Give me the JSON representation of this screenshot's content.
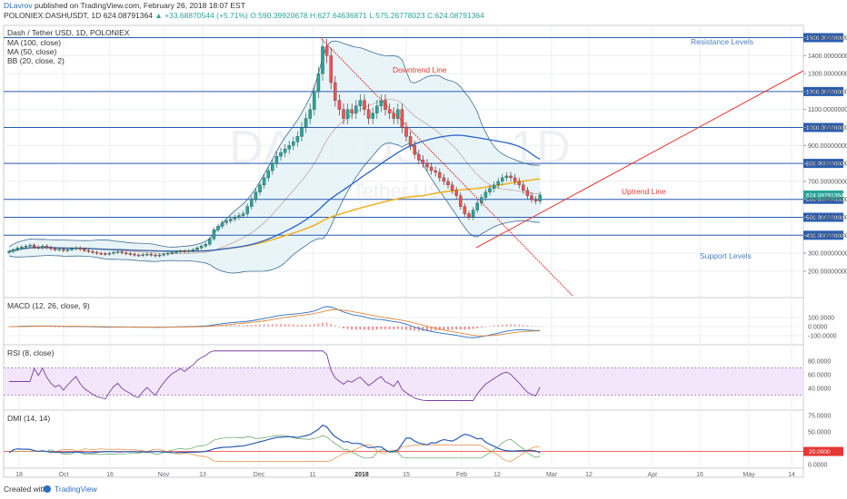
{
  "header": {
    "author": "DLavrov",
    "published": "published on TradingView.com, February 26, 2018 18:07 EST",
    "ticker": "POLONIEX:DASHUSDT, 1D",
    "last": "624.08791364",
    "change": "+33.68870544 (+5.71%)",
    "open": "O:590.39920678",
    "high": "H:627.64636871",
    "low": "L:575.26778023",
    "close": "C:624.08791364"
  },
  "legend": {
    "title": "Dash / Tether USD, 1D, POLONIEX",
    "ma100": "MA (100, close)",
    "ma50": "MA (50, close)",
    "bb": "BB (20, close, 2)"
  },
  "watermark": {
    "symbol": "DASHUSDT, 1D",
    "name": "Dash / Tether USD"
  },
  "annotations": {
    "resistance": "Resistance Levels",
    "support": "Support Levels",
    "downtrend": "Downtrend Line",
    "uptrend": "Uptrend Line"
  },
  "panes": {
    "macd": "MACD (12, 26, close, 9)",
    "rsi": "RSI (8, close)",
    "dmi": "DMI (14, 14)"
  },
  "footer": {
    "created": "Created with",
    "brand": "TradingView"
  },
  "colors": {
    "candle_up": "#26a69a",
    "candle_down": "#ef5350",
    "ma100": "#f0b429",
    "ma50": "#2962c9",
    "bb": "#3e6c96",
    "bb_fill": "#e6f3f7",
    "level": "#2a5db0",
    "trend": "#e53935",
    "rsi": "#7b3fa0",
    "macd": "#2a6ebf",
    "signal": "#e08a3c"
  },
  "chart_data": [
    {
      "type": "candlestick",
      "title": "Dash / Tether USD, 1D, POLONIEX",
      "x_ticks": [
        "18",
        "Oct",
        "16",
        "Nov",
        "13",
        "Dec",
        "11",
        "2018",
        "15",
        "Feb",
        "12",
        "Mar",
        "12",
        "Apr",
        "16",
        "May",
        "14"
      ],
      "ylim": [
        100,
        1650
      ],
      "y_ticks": [
        {
          "v": 1600,
          "label": "1600.00000000"
        },
        {
          "v": 1500,
          "label": "1500.00000000"
        },
        {
          "v": 1400,
          "label": "1400.00000000"
        },
        {
          "v": 1300,
          "label": "1300.00000000"
        },
        {
          "v": 1200,
          "label": "1200.00000000"
        },
        {
          "v": 1100,
          "label": "1100.00000000"
        },
        {
          "v": 1000,
          "label": "1000.00000000"
        },
        {
          "v": 900,
          "label": "900.00000000"
        },
        {
          "v": 800,
          "label": "800.00000000"
        },
        {
          "v": 700,
          "label": "700.00000000"
        },
        {
          "v": 600,
          "label": "600.00000000"
        },
        {
          "v": 500,
          "label": "500.00000000"
        },
        {
          "v": 400,
          "label": "400.00000000"
        },
        {
          "v": 300,
          "label": "300.00000000"
        },
        {
          "v": 200,
          "label": "200.00000000"
        }
      ],
      "horizontal_levels": [
        {
          "value": 1500,
          "label": "1500.00000000"
        },
        {
          "value": 1200,
          "label": "1200.00000000"
        },
        {
          "value": 1000,
          "label": "1000.00000000"
        },
        {
          "value": 800,
          "label": "800.00000000"
        },
        {
          "value": 600,
          "label": "600.00000000"
        },
        {
          "value": 500,
          "label": "500.00000000"
        },
        {
          "value": 400,
          "label": "400.00000000"
        }
      ],
      "last_price": {
        "value": 624.08791364,
        "label": "624.08791364"
      },
      "close_series": [
        310,
        320,
        330,
        335,
        340,
        345,
        335,
        330,
        340,
        332,
        325,
        320,
        322,
        315,
        320,
        325,
        330,
        322,
        315,
        310,
        305,
        300,
        298,
        295,
        300,
        305,
        308,
        302,
        298,
        295,
        290,
        288,
        292,
        295,
        290,
        285,
        290,
        295,
        300,
        305,
        308,
        312,
        310,
        315,
        320,
        330,
        340,
        350,
        380,
        430,
        450,
        470,
        480,
        490,
        500,
        510,
        520,
        560,
        600,
        640,
        680,
        720,
        760,
        800,
        840,
        860,
        880,
        900,
        920,
        950,
        1000,
        1050,
        1100,
        1200,
        1300,
        1450,
        1400,
        1250,
        1150,
        1100,
        1050,
        1100,
        1080,
        1120,
        1150,
        1100,
        1050,
        1080,
        1120,
        1150,
        1100,
        1080,
        1050,
        1100,
        1000,
        950,
        900,
        850,
        820,
        800,
        780,
        760,
        750,
        720,
        700,
        680,
        650,
        620,
        560,
        520,
        500,
        540,
        580,
        610,
        640,
        660,
        680,
        700,
        720,
        730,
        720,
        700,
        680,
        650,
        620,
        600,
        590,
        624
      ]
    },
    {
      "type": "line",
      "title": "MACD (12, 26, close, 9)",
      "y_ticks": [
        {
          "v": 100,
          "label": "100.0000"
        },
        {
          "v": 0,
          "label": "0.0000"
        },
        {
          "v": -100,
          "label": "-100.0000"
        }
      ],
      "ylim": [
        -110,
        160
      ]
    },
    {
      "type": "line",
      "title": "RSI (8, close)",
      "y_ticks": [
        {
          "v": 80,
          "label": "80.0000"
        },
        {
          "v": 60,
          "label": "60.0000"
        },
        {
          "v": 40,
          "label": "40.0000"
        }
      ],
      "ylim": [
        20,
        100
      ]
    },
    {
      "type": "line",
      "title": "DMI (14, 14)",
      "y_ticks": [
        {
          "v": 75,
          "label": "75.0000"
        },
        {
          "v": 50,
          "label": "50.0000"
        },
        {
          "v": 20,
          "label": "20.0000"
        },
        {
          "v": 0,
          "label": "0.0000"
        }
      ],
      "ylim": [
        -5,
        80
      ]
    }
  ]
}
